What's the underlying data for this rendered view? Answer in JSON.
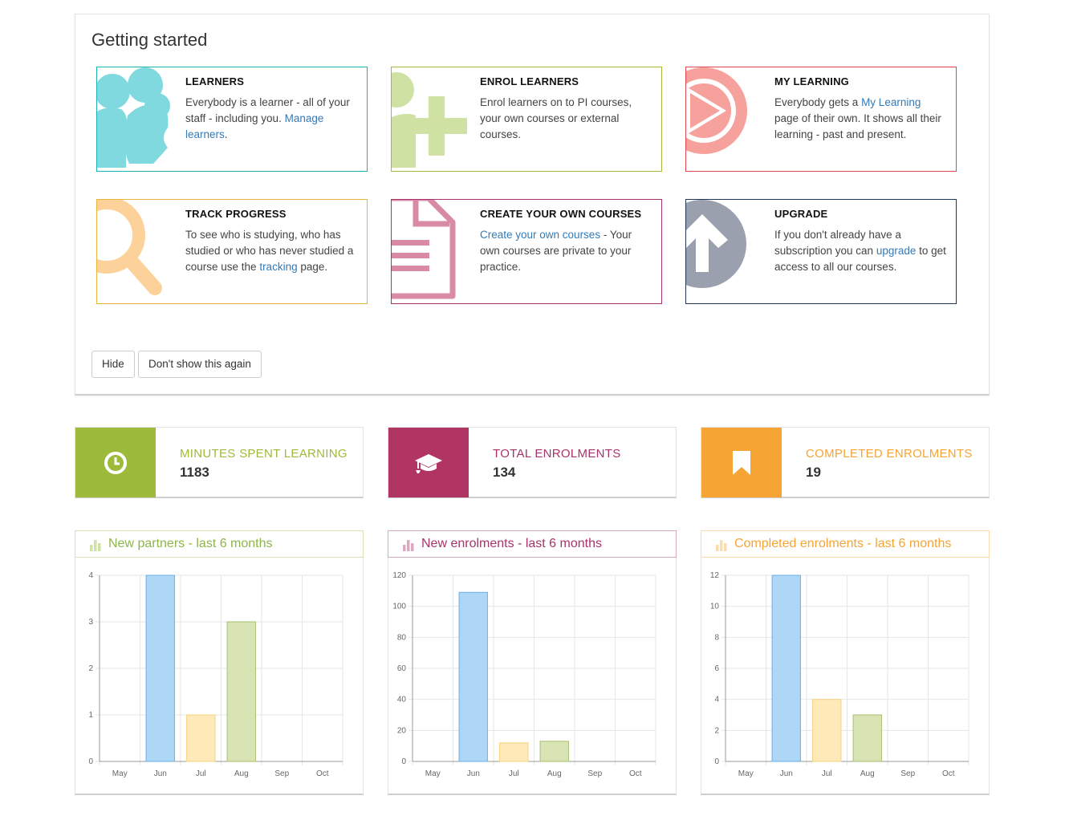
{
  "getting_started": {
    "title": "Getting started",
    "cards": [
      {
        "title": "LEARNERS",
        "pre": "Everybody is a learner - all of your staff - including you. ",
        "link": "Manage learners",
        "post": ".",
        "color": "#1ab3b3",
        "icon_color": "#7fd9df"
      },
      {
        "title": "ENROL LEARNERS",
        "pre": "Enrol learners on to PI courses, your own courses or external courses.",
        "link": "",
        "post": "",
        "color": "#9dba3a",
        "icon_color": "#cfe1a3"
      },
      {
        "title": "MY LEARNING",
        "pre": "Everybody gets a ",
        "link": "My Learning",
        "post": " page of their own. It shows all their learning - past and present.",
        "color": "#e0474c",
        "icon_color": "#f6a19c"
      },
      {
        "title": "TRACK PROGRESS",
        "pre": "To see who is studying, who has studied or who has never studied a course use the ",
        "link": "tracking",
        "post": " page.",
        "color": "#e6b53a",
        "icon_color": "#fdd29a"
      },
      {
        "title": "CREATE YOUR OWN COURSES",
        "pre": "",
        "link": "Create your own courses",
        "post": " - Your own courses are private to your practice.",
        "color": "#a8336b",
        "icon_color": "#d88aa6"
      },
      {
        "title": "UPGRADE",
        "pre": "If you don't already have a subscription you can ",
        "link": "upgrade",
        "post": " to get access to all our courses.",
        "color": "#1d3557",
        "icon_color": "#9aa0ad"
      }
    ],
    "buttons": {
      "hide": "Hide",
      "dont_show": "Don't show this again"
    }
  },
  "stats": [
    {
      "label": "MINUTES SPENT LEARNING",
      "value": "1183",
      "color": "#9dba3a",
      "icon": "clock-icon"
    },
    {
      "label": "TOTAL ENROLMENTS",
      "value": "134",
      "color": "#b03562",
      "icon": "graduation-cap-icon"
    },
    {
      "label": "COMPLETED ENROLMENTS",
      "value": "19",
      "color": "#f6a434",
      "icon": "bookmark-icon"
    }
  ],
  "charts": [
    {
      "title": "New partners - last 6 months",
      "color": "#8db54a",
      "border": "#d6e3b6",
      "icon": "bar-chart-icon"
    },
    {
      "title": "New enrolments - last 6 months",
      "color": "#a8336b",
      "border": "#dba9c0",
      "icon": "bar-chart-icon"
    },
    {
      "title": "Completed enrolments - last 6 months",
      "color": "#f6a434",
      "border": "#fbdcae",
      "icon": "bar-chart-icon"
    }
  ],
  "chart_data": [
    {
      "type": "bar",
      "title": "New partners - last 6 months",
      "categories": [
        "May",
        "Jun",
        "Jul",
        "Aug",
        "Sep",
        "Oct"
      ],
      "values": [
        0,
        4,
        1,
        3,
        0,
        0
      ],
      "ylim": [
        0,
        4
      ],
      "yticks": [
        0,
        1,
        2,
        3,
        4
      ],
      "bar_colors": [
        "#aed6f5",
        "#aed6f5",
        "#ffe9b8",
        "#d8e4b3",
        "#aed6f5",
        "#aed6f5"
      ],
      "bar_strokes": [
        "#6ab0e8",
        "#6ab0e8",
        "#f5d280",
        "#a9c071",
        "#6ab0e8",
        "#6ab0e8"
      ],
      "grid": true
    },
    {
      "type": "bar",
      "title": "New enrolments - last 6 months",
      "categories": [
        "May",
        "Jun",
        "Jul",
        "Aug",
        "Sep",
        "Oct"
      ],
      "values": [
        0,
        109,
        12,
        13,
        0,
        0
      ],
      "ylim": [
        0,
        120
      ],
      "yticks": [
        0,
        20,
        40,
        60,
        80,
        100,
        120
      ],
      "bar_colors": [
        "#aed6f5",
        "#aed6f5",
        "#ffe9b8",
        "#d8e4b3",
        "#aed6f5",
        "#aed6f5"
      ],
      "bar_strokes": [
        "#6ab0e8",
        "#6ab0e8",
        "#f5d280",
        "#a9c071",
        "#6ab0e8",
        "#6ab0e8"
      ],
      "grid": true
    },
    {
      "type": "bar",
      "title": "Completed enrolments - last 6 months",
      "categories": [
        "May",
        "Jun",
        "Jul",
        "Aug",
        "Sep",
        "Oct"
      ],
      "values": [
        0,
        12,
        4,
        3,
        0,
        0
      ],
      "ylim": [
        0,
        12
      ],
      "yticks": [
        0,
        2,
        4,
        6,
        8,
        10,
        12
      ],
      "bar_colors": [
        "#aed6f5",
        "#aed6f5",
        "#ffe9b8",
        "#d8e4b3",
        "#aed6f5",
        "#aed6f5"
      ],
      "bar_strokes": [
        "#6ab0e8",
        "#6ab0e8",
        "#f5d280",
        "#a9c071",
        "#6ab0e8",
        "#6ab0e8"
      ],
      "grid": true
    }
  ]
}
